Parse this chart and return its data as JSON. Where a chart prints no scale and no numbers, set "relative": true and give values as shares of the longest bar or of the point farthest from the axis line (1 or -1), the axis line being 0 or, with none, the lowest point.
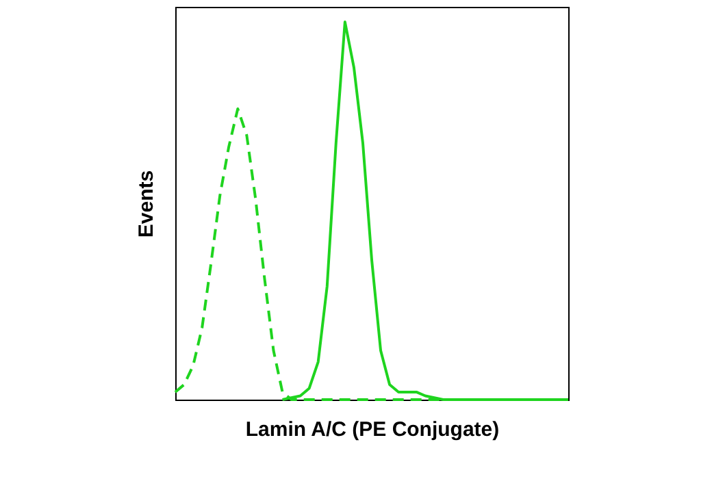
{
  "chart_data": {
    "type": "line",
    "relative": true,
    "xlabel": "Lamin A/C (PE Conjugate)",
    "ylabel": "Events",
    "grid": false,
    "marker": "none",
    "categories": [
      null,
      null,
      null,
      null,
      null,
      null,
      null,
      null,
      null,
      null,
      null,
      null,
      null,
      null,
      null,
      null,
      null,
      null,
      null,
      null,
      null,
      null,
      null,
      null,
      null,
      null,
      null,
      null,
      null,
      null,
      null,
      null,
      null,
      null,
      null,
      null,
      null,
      null,
      null,
      null,
      null,
      null,
      null,
      null,
      null
    ],
    "series": [
      {
        "color": "#1fd41f",
        "line_style": "dashed",
        "values": [
          0.02,
          0.04,
          0.09,
          0.19,
          0.36,
          0.54,
          0.67,
          0.77,
          0.7,
          0.53,
          0.32,
          0.13,
          0.02,
          0,
          0,
          0,
          0,
          0,
          0,
          0,
          0,
          0,
          0,
          0,
          0,
          0,
          0,
          0,
          0,
          0,
          0,
          0,
          0,
          0,
          0,
          0,
          0,
          0,
          0,
          0,
          0,
          0,
          0,
          0,
          0
        ]
      },
      {
        "color": "#1fd41f",
        "line_style": "solid",
        "values": [
          null,
          null,
          null,
          null,
          null,
          null,
          null,
          null,
          null,
          null,
          null,
          null,
          0,
          0.005,
          0.01,
          0.03,
          0.1,
          0.3,
          0.68,
          1.0,
          0.88,
          0.68,
          0.37,
          0.13,
          0.04,
          0.02,
          0.02,
          0.02,
          0.01,
          0.005,
          0,
          0,
          0,
          0,
          0,
          0,
          0,
          0,
          0,
          0,
          0,
          0,
          0,
          0,
          0
        ]
      }
    ]
  }
}
